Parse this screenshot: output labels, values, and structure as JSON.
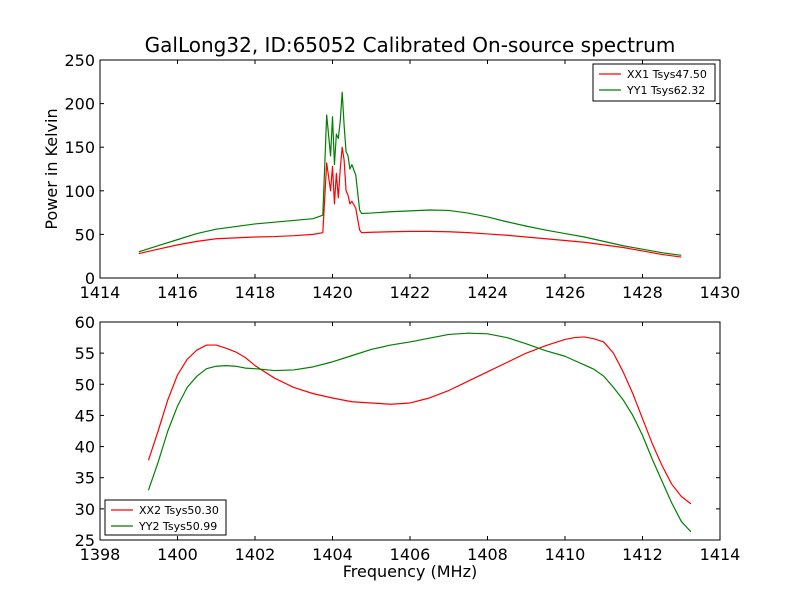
{
  "chart_data": [
    {
      "type": "line",
      "title": "GalLong32, ID:65052 Calibrated On-source spectrum",
      "xlabel": "",
      "ylabel": "Power in Kelvin",
      "xlim": [
        1414,
        1430
      ],
      "ylim": [
        0,
        250
      ],
      "xticks": [
        1414,
        1416,
        1418,
        1420,
        1422,
        1424,
        1426,
        1428,
        1430
      ],
      "yticks": [
        0,
        50,
        100,
        150,
        200,
        250
      ],
      "grid": false,
      "legend": "top-right",
      "series": [
        {
          "name": "XX1 Tsys47.50",
          "color": "#ff0000",
          "x": [
            1415.0,
            1415.5,
            1416.0,
            1416.5,
            1417.0,
            1417.5,
            1418.0,
            1418.5,
            1419.0,
            1419.5,
            1419.75,
            1419.85,
            1419.95,
            1420.0,
            1420.05,
            1420.1,
            1420.15,
            1420.2,
            1420.25,
            1420.3,
            1420.35,
            1420.4,
            1420.45,
            1420.5,
            1420.6,
            1420.7,
            1420.75,
            1421.0,
            1421.5,
            1422.0,
            1422.5,
            1423.0,
            1423.5,
            1424.0,
            1424.5,
            1425.0,
            1425.5,
            1426.0,
            1426.5,
            1427.0,
            1427.5,
            1428.0,
            1428.5,
            1429.0
          ],
          "y": [
            28,
            33,
            38,
            42,
            45,
            46,
            47,
            47.5,
            48.5,
            50,
            52,
            132,
            100,
            128,
            85,
            120,
            92,
            125,
            150,
            135,
            100,
            95,
            85,
            88,
            80,
            55,
            52,
            52.5,
            53,
            53.5,
            53.5,
            53,
            52,
            50.5,
            49,
            47,
            45,
            43,
            41,
            38,
            35,
            31,
            27,
            24
          ]
        },
        {
          "name": "YY1 Tsys62.32",
          "color": "#008000",
          "x": [
            1415.0,
            1415.5,
            1416.0,
            1416.5,
            1417.0,
            1417.5,
            1418.0,
            1418.5,
            1419.0,
            1419.5,
            1419.75,
            1419.85,
            1419.95,
            1420.0,
            1420.05,
            1420.1,
            1420.15,
            1420.2,
            1420.25,
            1420.3,
            1420.35,
            1420.4,
            1420.45,
            1420.5,
            1420.6,
            1420.7,
            1420.75,
            1421.0,
            1421.5,
            1422.0,
            1422.5,
            1423.0,
            1423.5,
            1424.0,
            1424.5,
            1425.0,
            1425.5,
            1426.0,
            1426.5,
            1427.0,
            1427.5,
            1428.0,
            1428.5,
            1429.0
          ],
          "y": [
            30,
            37,
            44,
            51,
            56,
            59,
            62,
            64,
            66,
            68,
            72,
            187,
            140,
            185,
            130,
            165,
            160,
            180,
            213,
            175,
            145,
            140,
            125,
            130,
            118,
            78,
            74,
            74.5,
            76,
            77,
            78,
            77.5,
            74.5,
            70,
            64.5,
            59.5,
            55,
            51,
            47,
            42,
            37,
            33,
            29,
            26
          ]
        }
      ]
    },
    {
      "type": "line",
      "title": "",
      "xlabel": "Frequency (MHz)",
      "ylabel": "",
      "xlim": [
        1398,
        1414
      ],
      "ylim": [
        25,
        60
      ],
      "xticks": [
        1398,
        1400,
        1402,
        1404,
        1406,
        1408,
        1410,
        1412,
        1414
      ],
      "yticks": [
        25,
        30,
        35,
        40,
        45,
        50,
        55,
        60
      ],
      "grid": false,
      "legend": "bottom-left",
      "series": [
        {
          "name": "XX2 Tsys50.30",
          "color": "#ff0000",
          "x": [
            1399.25,
            1399.5,
            1399.75,
            1400.0,
            1400.25,
            1400.5,
            1400.75,
            1401.0,
            1401.25,
            1401.5,
            1401.75,
            1402.0,
            1402.5,
            1403.0,
            1403.5,
            1404.0,
            1404.5,
            1405.0,
            1405.5,
            1406.0,
            1406.5,
            1407.0,
            1407.5,
            1408.0,
            1408.5,
            1409.0,
            1409.5,
            1410.0,
            1410.25,
            1410.5,
            1410.75,
            1411.0,
            1411.25,
            1411.5,
            1411.75,
            1412.0,
            1412.25,
            1412.5,
            1412.75,
            1413.0,
            1413.25
          ],
          "y": [
            37.8,
            42.5,
            47.5,
            51.5,
            54.0,
            55.5,
            56.3,
            56.3,
            55.8,
            55.2,
            54.3,
            53.0,
            51.0,
            49.5,
            48.5,
            47.8,
            47.2,
            47.0,
            46.8,
            47.0,
            47.8,
            49.0,
            50.5,
            52.0,
            53.5,
            55.0,
            56.2,
            57.2,
            57.5,
            57.6,
            57.3,
            56.8,
            55.0,
            52.0,
            48.5,
            44.5,
            40.5,
            37.0,
            34.0,
            32.0,
            30.8
          ]
        },
        {
          "name": "YY2 Tsys50.99",
          "color": "#008000",
          "x": [
            1399.25,
            1399.5,
            1399.75,
            1400.0,
            1400.25,
            1400.5,
            1400.75,
            1401.0,
            1401.25,
            1401.5,
            1401.75,
            1402.0,
            1402.5,
            1403.0,
            1403.5,
            1404.0,
            1404.5,
            1405.0,
            1405.5,
            1406.0,
            1406.5,
            1407.0,
            1407.5,
            1408.0,
            1408.5,
            1409.0,
            1409.5,
            1410.0,
            1410.25,
            1410.5,
            1410.75,
            1411.0,
            1411.25,
            1411.5,
            1411.75,
            1412.0,
            1412.25,
            1412.5,
            1412.75,
            1413.0,
            1413.25
          ],
          "y": [
            33.0,
            37.5,
            42.5,
            46.5,
            49.5,
            51.3,
            52.5,
            52.9,
            53.0,
            52.9,
            52.6,
            52.5,
            52.2,
            52.3,
            52.8,
            53.6,
            54.6,
            55.6,
            56.3,
            56.8,
            57.4,
            58.0,
            58.2,
            58.1,
            57.5,
            56.5,
            55.4,
            54.5,
            53.8,
            53.1,
            52.4,
            51.3,
            49.5,
            47.5,
            45.0,
            41.8,
            38.0,
            34.5,
            31.0,
            28.0,
            26.3
          ]
        }
      ]
    }
  ]
}
